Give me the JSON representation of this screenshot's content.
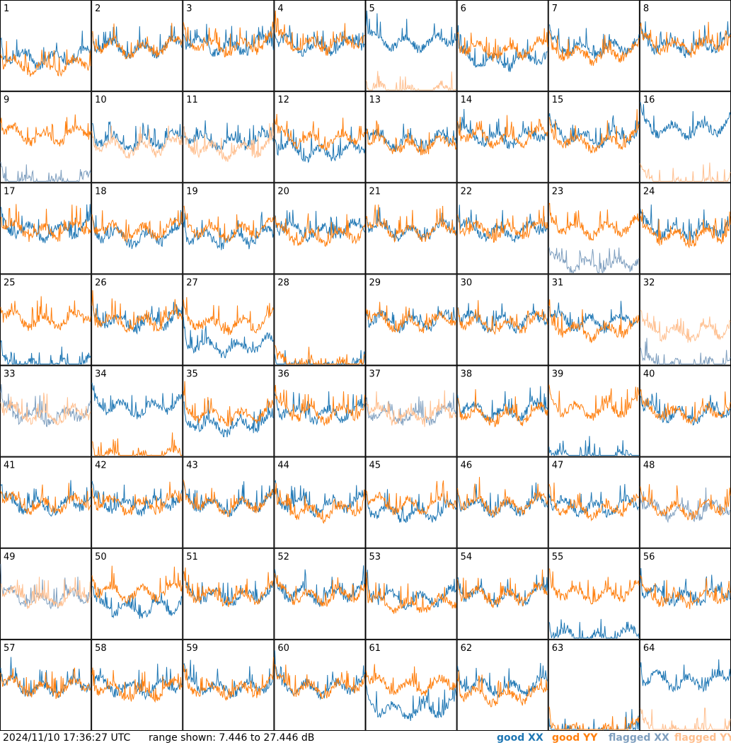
{
  "footer": {
    "timestamp": "2024/11/10 17:36:27 UTC",
    "range_text": "range shown: 7.446 to 27.446 dB"
  },
  "legend": [
    {
      "key": "good_xx",
      "label": "good XX",
      "color": "#1f77b4"
    },
    {
      "key": "good_yy",
      "label": "good YY",
      "color": "#ff7f0e"
    },
    {
      "key": "flagged_xx",
      "label": "flagged XX",
      "color": "#7f9fbf"
    },
    {
      "key": "flagged_yy",
      "label": "flagged YY",
      "color": "#ffbf8f"
    }
  ],
  "chart_data": {
    "type": "line",
    "grid": "8x8 small multiples, one panel per tile",
    "ylim_db": [
      7.446,
      27.446
    ],
    "axes_visible": false,
    "panels": [
      {
        "id": "1",
        "xx": "good",
        "yy": "good",
        "xx_db": 17.0,
        "yy_db": 15.0
      },
      {
        "id": "2",
        "xx": "good",
        "yy": "good",
        "xx_db": 19.5,
        "yy_db": 19.5
      },
      {
        "id": "3",
        "xx": "good",
        "yy": "good",
        "xx_db": 20.0,
        "yy_db": 20.0
      },
      {
        "id": "4",
        "xx": "good",
        "yy": "good",
        "xx_db": 20.0,
        "yy_db": 20.5
      },
      {
        "id": "5",
        "xx": "good",
        "yy": "flagged",
        "xx_db": 21.0,
        "yy_db": 8.5
      },
      {
        "id": "6",
        "xx": "good",
        "yy": "good",
        "xx_db": 16.5,
        "yy_db": 19.0
      },
      {
        "id": "7",
        "xx": "good",
        "yy": "good",
        "xx_db": 19.5,
        "yy_db": 18.0
      },
      {
        "id": "8",
        "xx": "good",
        "yy": "good",
        "xx_db": 20.0,
        "yy_db": 20.0
      },
      {
        "id": "9",
        "xx": "flagged",
        "yy": "good",
        "xx_db": 8.5,
        "yy_db": 20.5
      },
      {
        "id": "10",
        "xx": "good",
        "yy": "flagged",
        "xx_db": 19.0,
        "yy_db": 17.5
      },
      {
        "id": "11",
        "xx": "good",
        "yy": "flagged",
        "xx_db": 19.0,
        "yy_db": 17.0
      },
      {
        "id": "12",
        "xx": "good",
        "yy": "good",
        "xx_db": 16.5,
        "yy_db": 19.5
      },
      {
        "id": "13",
        "xx": "good",
        "yy": "good",
        "xx_db": 19.0,
        "yy_db": 18.0
      },
      {
        "id": "14",
        "xx": "good",
        "yy": "good",
        "xx_db": 20.0,
        "yy_db": 20.0
      },
      {
        "id": "15",
        "xx": "good",
        "yy": "good",
        "xx_db": 20.0,
        "yy_db": 19.0
      },
      {
        "id": "16",
        "xx": "good",
        "yy": "flagged",
        "xx_db": 22.0,
        "yy_db": 8.5
      },
      {
        "id": "17",
        "xx": "good",
        "yy": "good",
        "xx_db": 19.5,
        "yy_db": 19.5
      },
      {
        "id": "18",
        "xx": "good",
        "yy": "good",
        "xx_db": 18.0,
        "yy_db": 19.5
      },
      {
        "id": "19",
        "xx": "good",
        "yy": "good",
        "xx_db": 17.5,
        "yy_db": 19.5
      },
      {
        "id": "20",
        "xx": "good",
        "yy": "good",
        "xx_db": 19.5,
        "yy_db": 18.0
      },
      {
        "id": "21",
        "xx": "good",
        "yy": "good",
        "xx_db": 19.5,
        "yy_db": 19.5
      },
      {
        "id": "22",
        "xx": "good",
        "yy": "good",
        "xx_db": 19.5,
        "yy_db": 19.5
      },
      {
        "id": "23",
        "xx": "flagged",
        "yy": "good",
        "xx_db": 11.0,
        "yy_db": 20.0
      },
      {
        "id": "24",
        "xx": "good",
        "yy": "good",
        "xx_db": 19.5,
        "yy_db": 18.0
      },
      {
        "id": "25",
        "xx": "good",
        "yy": "good",
        "xx_db": 8.5,
        "yy_db": 20.0
      },
      {
        "id": "26",
        "xx": "good",
        "yy": "good",
        "xx_db": 19.5,
        "yy_db": 19.5
      },
      {
        "id": "27",
        "xx": "good",
        "yy": "good",
        "xx_db": 13.5,
        "yy_db": 19.0
      },
      {
        "id": "28",
        "xx": "good",
        "yy": "good",
        "xx_db": 7.5,
        "yy_db": 8.5
      },
      {
        "id": "29",
        "xx": "good",
        "yy": "good",
        "xx_db": 19.5,
        "yy_db": 19.5
      },
      {
        "id": "30",
        "xx": "good",
        "yy": "good",
        "xx_db": 19.5,
        "yy_db": 19.0
      },
      {
        "id": "31",
        "xx": "good",
        "yy": "good",
        "xx_db": 19.5,
        "yy_db": 17.5
      },
      {
        "id": "32",
        "xx": "flagged",
        "yy": "flagged",
        "xx_db": 8.5,
        "yy_db": 17.0
      },
      {
        "id": "33",
        "xx": "flagged",
        "yy": "flagged",
        "xx_db": 19.0,
        "yy_db": 19.0
      },
      {
        "id": "34",
        "xx": "good",
        "yy": "good",
        "xx_db": 21.0,
        "yy_db": 8.5
      },
      {
        "id": "35",
        "xx": "good",
        "yy": "good",
        "xx_db": 16.5,
        "yy_db": 19.0
      },
      {
        "id": "36",
        "xx": "good",
        "yy": "good",
        "xx_db": 19.5,
        "yy_db": 19.5
      },
      {
        "id": "37",
        "xx": "flagged",
        "yy": "flagged",
        "xx_db": 19.0,
        "yy_db": 19.0
      },
      {
        "id": "38",
        "xx": "good",
        "yy": "good",
        "xx_db": 20.0,
        "yy_db": 19.0
      },
      {
        "id": "39",
        "xx": "good",
        "yy": "good",
        "xx_db": 8.0,
        "yy_db": 20.5
      },
      {
        "id": "40",
        "xx": "good",
        "yy": "good",
        "xx_db": 19.5,
        "yy_db": 19.5
      },
      {
        "id": "41",
        "xx": "good",
        "yy": "good",
        "xx_db": 19.5,
        "yy_db": 19.5
      },
      {
        "id": "42",
        "xx": "good",
        "yy": "good",
        "xx_db": 19.5,
        "yy_db": 19.5
      },
      {
        "id": "43",
        "xx": "good",
        "yy": "good",
        "xx_db": 19.5,
        "yy_db": 19.5
      },
      {
        "id": "44",
        "xx": "good",
        "yy": "good",
        "xx_db": 19.5,
        "yy_db": 18.0
      },
      {
        "id": "45",
        "xx": "good",
        "yy": "good",
        "xx_db": 17.5,
        "yy_db": 19.5
      },
      {
        "id": "46",
        "xx": "good",
        "yy": "good",
        "xx_db": 19.0,
        "yy_db": 19.5
      },
      {
        "id": "47",
        "xx": "good",
        "yy": "good",
        "xx_db": 19.0,
        "yy_db": 18.5
      },
      {
        "id": "48",
        "xx": "flagged",
        "yy": "good",
        "xx_db": 18.0,
        "yy_db": 18.5
      },
      {
        "id": "49",
        "xx": "flagged",
        "yy": "flagged",
        "xx_db": 19.0,
        "yy_db": 19.0
      },
      {
        "id": "50",
        "xx": "good",
        "yy": "good",
        "xx_db": 16.5,
        "yy_db": 20.5
      },
      {
        "id": "51",
        "xx": "good",
        "yy": "good",
        "xx_db": 19.5,
        "yy_db": 19.5
      },
      {
        "id": "52",
        "xx": "good",
        "yy": "good",
        "xx_db": 20.0,
        "yy_db": 19.5
      },
      {
        "id": "53",
        "xx": "good",
        "yy": "good",
        "xx_db": 19.0,
        "yy_db": 17.5
      },
      {
        "id": "54",
        "xx": "good",
        "yy": "good",
        "xx_db": 19.5,
        "yy_db": 19.5
      },
      {
        "id": "55",
        "xx": "good",
        "yy": "good",
        "xx_db": 9.5,
        "yy_db": 20.0
      },
      {
        "id": "56",
        "xx": "good",
        "yy": "good",
        "xx_db": 19.5,
        "yy_db": 19.0
      },
      {
        "id": "57",
        "xx": "good",
        "yy": "good",
        "xx_db": 19.5,
        "yy_db": 19.5
      },
      {
        "id": "58",
        "xx": "good",
        "yy": "good",
        "xx_db": 19.5,
        "yy_db": 18.5
      },
      {
        "id": "59",
        "xx": "good",
        "yy": "good",
        "xx_db": 19.5,
        "yy_db": 19.0
      },
      {
        "id": "60",
        "xx": "good",
        "yy": "good",
        "xx_db": 19.5,
        "yy_db": 19.5
      },
      {
        "id": "61",
        "xx": "good",
        "yy": "good",
        "xx_db": 14.0,
        "yy_db": 20.0
      },
      {
        "id": "62",
        "xx": "good",
        "yy": "good",
        "xx_db": 19.5,
        "yy_db": 17.5
      },
      {
        "id": "63",
        "xx": "good",
        "yy": "good",
        "xx_db": 7.5,
        "yy_db": 8.5
      },
      {
        "id": "64",
        "xx": "good",
        "yy": "flagged",
        "xx_db": 21.0,
        "yy_db": 8.5
      }
    ]
  }
}
